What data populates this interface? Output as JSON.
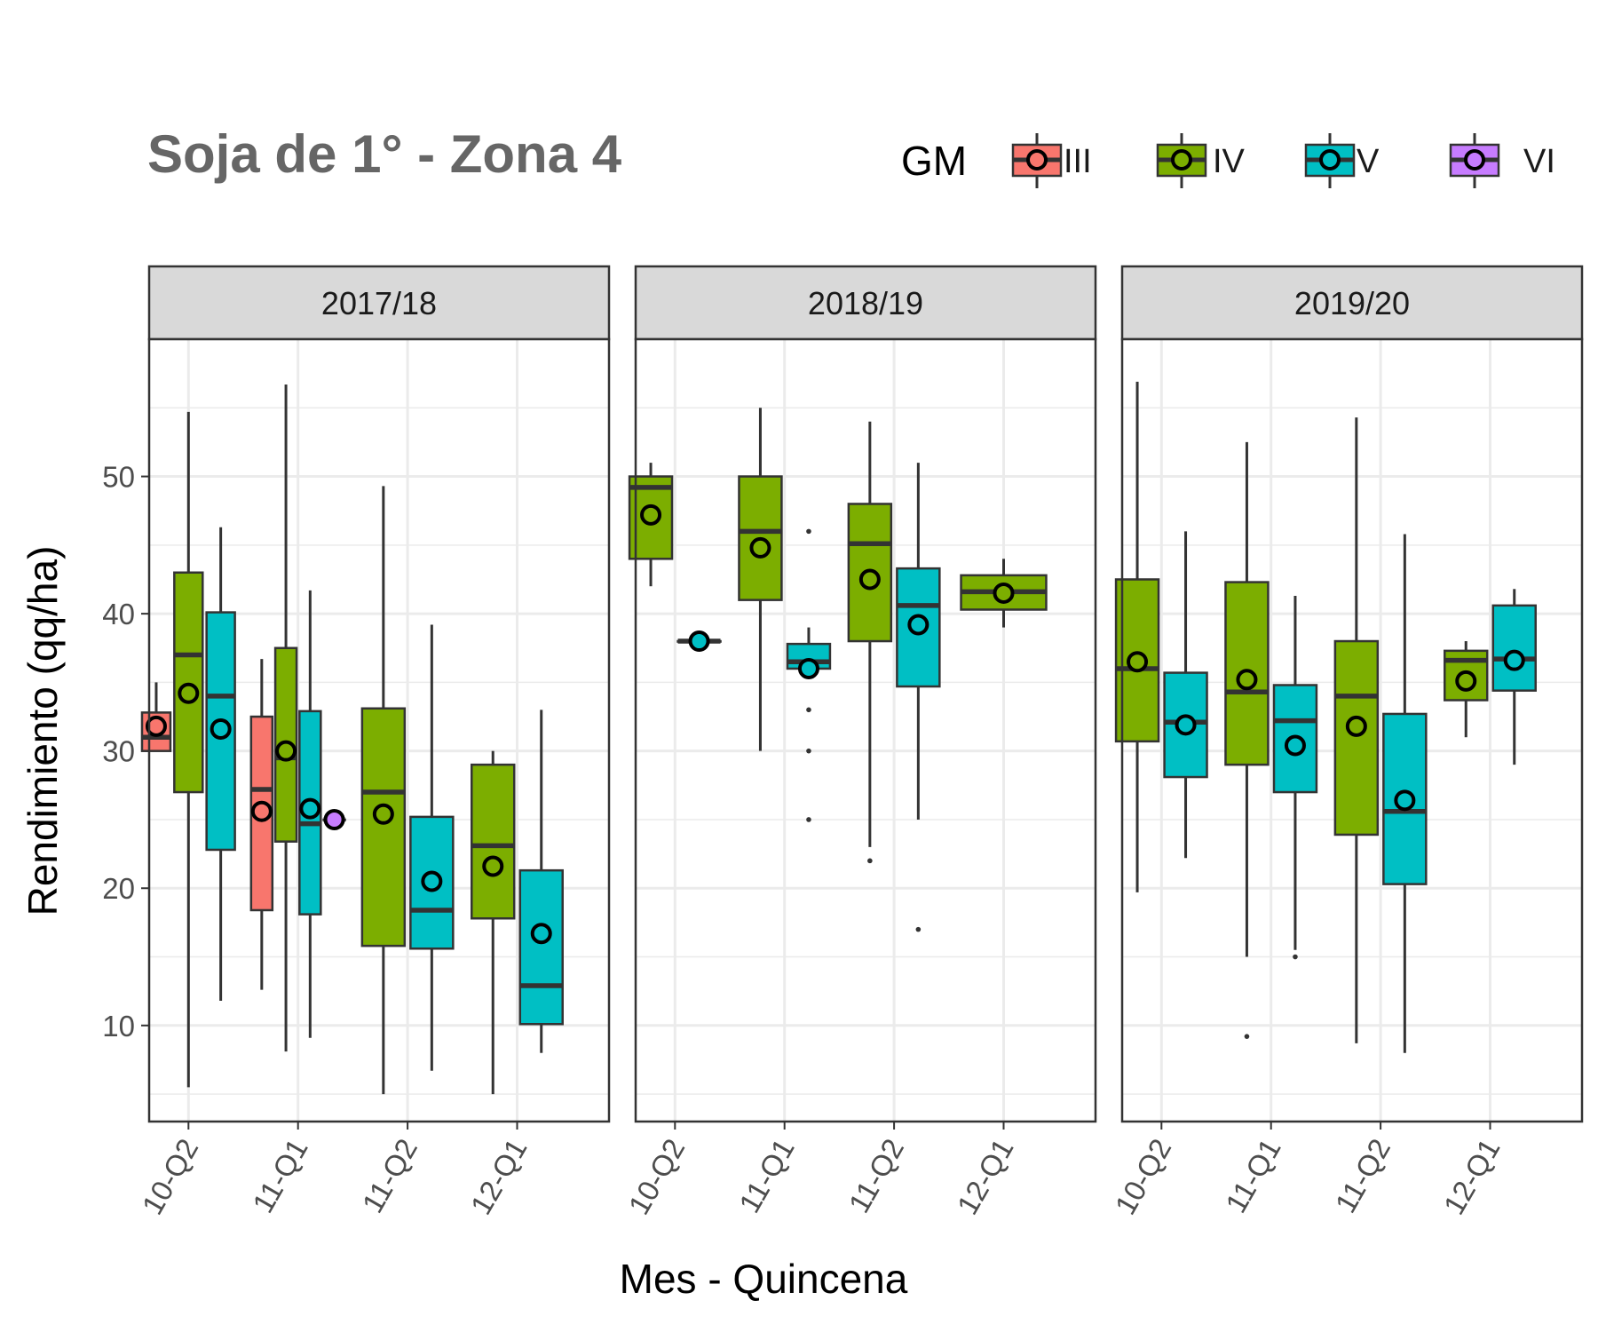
{
  "chart_data": {
    "type": "boxplot",
    "title": "Soja de 1° - Zona 4",
    "xlabel": "Mes - Quincena",
    "ylabel": "Rendimiento (qq/ha)",
    "ylim": [
      3,
      60
    ],
    "yticks": [
      10,
      20,
      30,
      40,
      50
    ],
    "categories": [
      "10-Q2",
      "11-Q1",
      "11-Q2",
      "12-Q1"
    ],
    "legend": {
      "title": "GM",
      "position": "top-right",
      "items": [
        {
          "label": "III",
          "color": "#F8766D"
        },
        {
          "label": "IV",
          "color": "#7CAE00"
        },
        {
          "label": "V",
          "color": "#00BFC4"
        },
        {
          "label": "VI",
          "color": "#C77CFF"
        }
      ]
    },
    "grid": true,
    "panels": [
      {
        "label": "2017/18",
        "groups": [
          {
            "category": "10-Q2",
            "gm": "III",
            "n_in_cat": 3,
            "slot": 0,
            "whisker_low": 30,
            "q1": 30,
            "median": 31,
            "q3": 32.8,
            "whisker_high": 35,
            "mean": 31.8,
            "outliers": []
          },
          {
            "category": "10-Q2",
            "gm": "IV",
            "n_in_cat": 3,
            "slot": 1,
            "whisker_low": 5.5,
            "q1": 27,
            "median": 37,
            "q3": 43,
            "whisker_high": 54.7,
            "mean": 34.2,
            "outliers": []
          },
          {
            "category": "10-Q2",
            "gm": "V",
            "n_in_cat": 3,
            "slot": 2,
            "whisker_low": 11.8,
            "q1": 22.8,
            "median": 34,
            "q3": 40.1,
            "whisker_high": 46.3,
            "mean": 31.6,
            "outliers": []
          },
          {
            "category": "11-Q1",
            "gm": "III",
            "n_in_cat": 4,
            "slot": 0,
            "whisker_low": 12.6,
            "q1": 18.4,
            "median": 27.2,
            "q3": 32.5,
            "whisker_high": 36.7,
            "mean": 25.6,
            "outliers": []
          },
          {
            "category": "11-Q1",
            "gm": "IV",
            "n_in_cat": 4,
            "slot": 1,
            "whisker_low": 8.1,
            "q1": 23.4,
            "median": 29.5,
            "q3": 37.5,
            "whisker_high": 56.7,
            "mean": 30,
            "outliers": []
          },
          {
            "category": "11-Q1",
            "gm": "V",
            "n_in_cat": 4,
            "slot": 2,
            "whisker_low": 9.1,
            "q1": 18.1,
            "median": 24.7,
            "q3": 32.9,
            "whisker_high": 41.7,
            "mean": 25.8,
            "outliers": []
          },
          {
            "category": "11-Q1",
            "gm": "VI",
            "n_in_cat": 4,
            "slot": 3,
            "whisker_low": 25,
            "q1": 25,
            "median": 25,
            "q3": 25,
            "whisker_high": 25,
            "mean": 25,
            "outliers": []
          },
          {
            "category": "11-Q2",
            "gm": "IV",
            "n_in_cat": 2,
            "slot": 0,
            "whisker_low": 5,
            "q1": 15.8,
            "median": 27,
            "q3": 33.1,
            "whisker_high": 49.3,
            "mean": 25.4,
            "outliers": []
          },
          {
            "category": "11-Q2",
            "gm": "V",
            "n_in_cat": 2,
            "slot": 1,
            "whisker_low": 6.7,
            "q1": 15.6,
            "median": 18.4,
            "q3": 25.2,
            "whisker_high": 39.2,
            "mean": 20.5,
            "outliers": []
          },
          {
            "category": "12-Q1",
            "gm": "IV",
            "n_in_cat": 2,
            "slot": 0,
            "whisker_low": 5,
            "q1": 17.8,
            "median": 23.1,
            "q3": 29,
            "whisker_high": 30,
            "mean": 21.6,
            "outliers": []
          },
          {
            "category": "12-Q1",
            "gm": "V",
            "n_in_cat": 2,
            "slot": 1,
            "whisker_low": 8,
            "q1": 10.1,
            "median": 12.9,
            "q3": 21.3,
            "whisker_high": 33,
            "mean": 16.7,
            "outliers": []
          }
        ]
      },
      {
        "label": "2018/19",
        "groups": [
          {
            "category": "10-Q2",
            "gm": "IV",
            "n_in_cat": 2,
            "slot": 0,
            "whisker_low": 42,
            "q1": 44,
            "median": 49.2,
            "q3": 50,
            "whisker_high": 51,
            "mean": 47.2,
            "outliers": []
          },
          {
            "category": "10-Q2",
            "gm": "V",
            "n_in_cat": 2,
            "slot": 1,
            "whisker_low": 38,
            "q1": 38,
            "median": 38,
            "q3": 38,
            "whisker_high": 38,
            "mean": 38,
            "outliers": []
          },
          {
            "category": "11-Q1",
            "gm": "IV",
            "n_in_cat": 2,
            "slot": 0,
            "whisker_low": 30,
            "q1": 41,
            "median": 46,
            "q3": 50,
            "whisker_high": 55,
            "mean": 44.8,
            "outliers": []
          },
          {
            "category": "11-Q1",
            "gm": "V",
            "n_in_cat": 2,
            "slot": 1,
            "whisker_low": 36,
            "q1": 36,
            "median": 36.5,
            "q3": 37.8,
            "whisker_high": 39,
            "mean": 36,
            "outliers": [
              46,
              33,
              30,
              25
            ]
          },
          {
            "category": "11-Q2",
            "gm": "IV",
            "n_in_cat": 2,
            "slot": 0,
            "whisker_low": 23,
            "q1": 38,
            "median": 45.1,
            "q3": 48,
            "whisker_high": 54,
            "mean": 42.5,
            "outliers": [
              22
            ]
          },
          {
            "category": "11-Q2",
            "gm": "V",
            "n_in_cat": 2,
            "slot": 1,
            "whisker_low": 25,
            "q1": 34.7,
            "median": 40.6,
            "q3": 43.3,
            "whisker_high": 51,
            "mean": 39.2,
            "outliers": [
              17
            ]
          },
          {
            "category": "12-Q1",
            "gm": "IV",
            "n_in_cat": 1,
            "slot": 0,
            "whisker_low": 39,
            "q1": 40.3,
            "median": 41.6,
            "q3": 42.8,
            "whisker_high": 44,
            "mean": 41.5,
            "outliers": []
          }
        ]
      },
      {
        "label": "2019/20",
        "groups": [
          {
            "category": "10-Q2",
            "gm": "IV",
            "n_in_cat": 2,
            "slot": 0,
            "whisker_low": 19.7,
            "q1": 30.7,
            "median": 36,
            "q3": 42.5,
            "whisker_high": 56.9,
            "mean": 36.5,
            "outliers": []
          },
          {
            "category": "10-Q2",
            "gm": "V",
            "n_in_cat": 2,
            "slot": 1,
            "whisker_low": 22.2,
            "q1": 28.1,
            "median": 32.1,
            "q3": 35.7,
            "whisker_high": 46,
            "mean": 31.9,
            "outliers": []
          },
          {
            "category": "11-Q1",
            "gm": "IV",
            "n_in_cat": 2,
            "slot": 0,
            "whisker_low": 15,
            "q1": 29,
            "median": 34.3,
            "q3": 42.3,
            "whisker_high": 52.5,
            "mean": 35.2,
            "outliers": [
              9.2
            ]
          },
          {
            "category": "11-Q1",
            "gm": "V",
            "n_in_cat": 2,
            "slot": 1,
            "whisker_low": 15.5,
            "q1": 27,
            "median": 32.2,
            "q3": 34.8,
            "whisker_high": 41.3,
            "mean": 30.4,
            "outliers": [
              15
            ]
          },
          {
            "category": "11-Q2",
            "gm": "IV",
            "n_in_cat": 2,
            "slot": 0,
            "whisker_low": 8.7,
            "q1": 23.9,
            "median": 34,
            "q3": 38,
            "whisker_high": 54.3,
            "mean": 31.8,
            "outliers": []
          },
          {
            "category": "11-Q2",
            "gm": "V",
            "n_in_cat": 2,
            "slot": 1,
            "whisker_low": 8,
            "q1": 20.3,
            "median": 25.6,
            "q3": 32.7,
            "whisker_high": 45.8,
            "mean": 26.4,
            "outliers": []
          },
          {
            "category": "12-Q1",
            "gm": "IV",
            "n_in_cat": 2,
            "slot": 0,
            "whisker_low": 31,
            "q1": 33.7,
            "median": 36.6,
            "q3": 37.3,
            "whisker_high": 38,
            "mean": 35.1,
            "outliers": []
          },
          {
            "category": "12-Q1",
            "gm": "V",
            "n_in_cat": 2,
            "slot": 1,
            "whisker_low": 29,
            "q1": 34.4,
            "median": 36.7,
            "q3": 40.6,
            "whisker_high": 41.8,
            "mean": 36.6,
            "outliers": []
          }
        ]
      }
    ]
  }
}
